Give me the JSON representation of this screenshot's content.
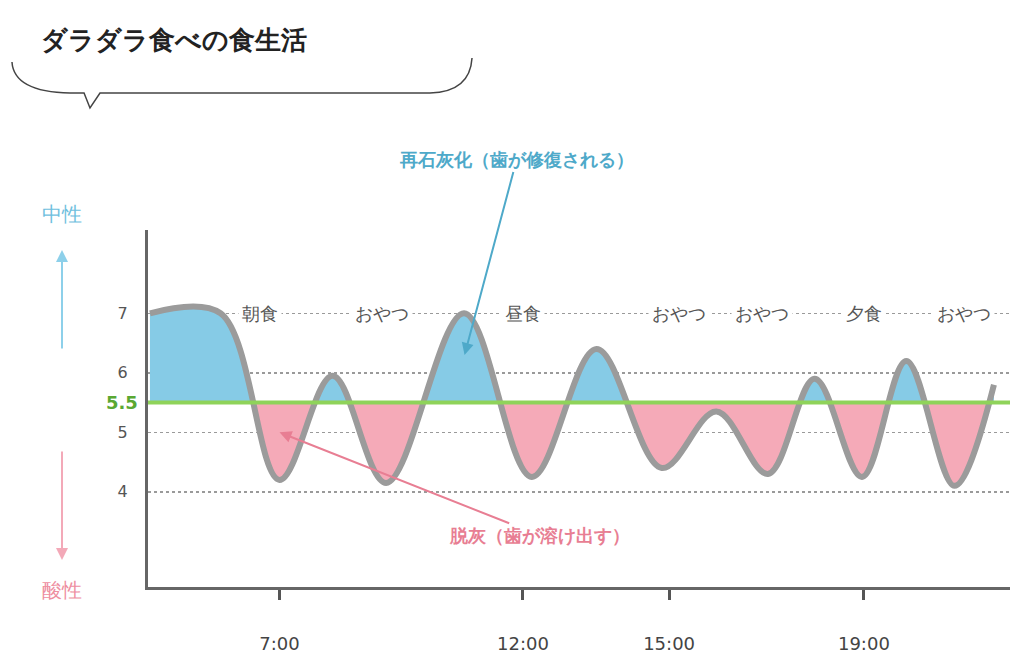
{
  "chart_data": {
    "type": "line",
    "title": "ダラダラ食べの食生活",
    "x": [
      4.34,
      5.79,
      7.0,
      8.09,
      9.19,
      10.79,
      12.18,
      13.51,
      14.85,
      15.97,
      17.03,
      17.99,
      18.96,
      19.87,
      20.86,
      21.67
    ],
    "values": [
      7.0,
      7.0,
      4.2,
      5.95,
      4.15,
      7.0,
      4.25,
      6.4,
      4.4,
      5.35,
      4.3,
      5.9,
      4.25,
      6.2,
      4.1,
      5.8
    ],
    "color": "#9b9b9b",
    "xlim": [
      4.3,
      22
    ],
    "xticks": [
      {
        "value": 7,
        "label": "7:00"
      },
      {
        "value": 12,
        "label": "12:00"
      },
      {
        "value": 15,
        "label": "15:00"
      },
      {
        "value": 19,
        "label": "19:00"
      }
    ],
    "ylim": [
      2.4,
      8.4
    ],
    "yticks": [
      4,
      5,
      6,
      7
    ],
    "threshold": 5.5,
    "grid": true,
    "axis_labels": {
      "top": "中性",
      "bottom": "酸性"
    },
    "events": [
      {
        "x": 6.6,
        "label": "朝食"
      },
      {
        "x": 9.1,
        "label": "おやつ"
      },
      {
        "x": 12,
        "label": "昼食"
      },
      {
        "x": 15.2,
        "label": "おやつ"
      },
      {
        "x": 16.9,
        "label": "おやつ"
      },
      {
        "x": 19,
        "label": "夕食"
      },
      {
        "x": 21.05,
        "label": "おやつ"
      }
    ],
    "annotations": [
      {
        "text": "再石灰化（歯が修復される）",
        "x": 10.8,
        "y": 6.3,
        "color": "#4ea9c9"
      },
      {
        "text": "脱灰（歯が溶け出す）",
        "x": 7.0,
        "y": 5.0,
        "color": "#e87e93"
      }
    ]
  }
}
